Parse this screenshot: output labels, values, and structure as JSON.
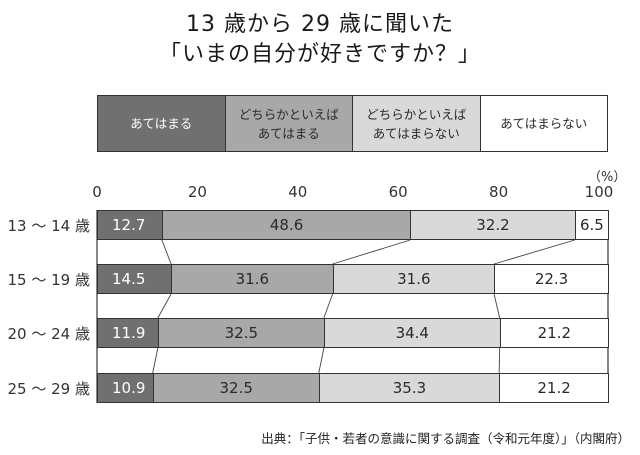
{
  "title": {
    "line1": "13 歳から 29 歳に聞いた",
    "line2": "「いまの自分が好きですか？」"
  },
  "legend": [
    {
      "label": "あてはまる",
      "color": "#707070",
      "text_color": "#ffffff"
    },
    {
      "label": "どちらかといえば\nあてはまる",
      "color": "#a8a8a8",
      "text_color": "#2a2a2a"
    },
    {
      "label": "どちらかといえば\nあてはまらない",
      "color": "#d9d9d9",
      "text_color": "#2a2a2a"
    },
    {
      "label": "あてはまらない",
      "color": "#ffffff",
      "text_color": "#2a2a2a"
    }
  ],
  "axis": {
    "unit": "（%）",
    "ticks": [
      "0",
      "20",
      "40",
      "60",
      "80",
      "100"
    ]
  },
  "source": "出典：「子供・若者の意識に関する調査（令和元年度）」（内閣府）",
  "chart_data": {
    "type": "bar",
    "orientation": "horizontal-stacked-100",
    "title": "13 歳から 29 歳に聞いた「いまの自分が好きですか？」",
    "xlabel": "（%）",
    "xlim": [
      0,
      100
    ],
    "xticks": [
      0,
      20,
      40,
      60,
      80,
      100
    ],
    "categories": [
      "13 ～ 14 歳",
      "15 ～ 19 歳",
      "20 ～ 24 歳",
      "25 ～ 29 歳"
    ],
    "series": [
      {
        "name": "あてはまる",
        "values": [
          12.7,
          14.5,
          11.9,
          10.9
        ]
      },
      {
        "name": "どちらかといえばあてはまる",
        "values": [
          48.6,
          31.6,
          32.5,
          32.5
        ]
      },
      {
        "name": "どちらかといえばあてはまらない",
        "values": [
          32.2,
          31.6,
          34.4,
          35.3
        ]
      },
      {
        "name": "あてはまらない",
        "values": [
          6.5,
          22.3,
          21.2,
          21.2
        ]
      }
    ],
    "legend_position": "top",
    "grid": false,
    "source": "出典：「子供・若者の意識に関する調査（令和元年度）」（内閣府）"
  }
}
